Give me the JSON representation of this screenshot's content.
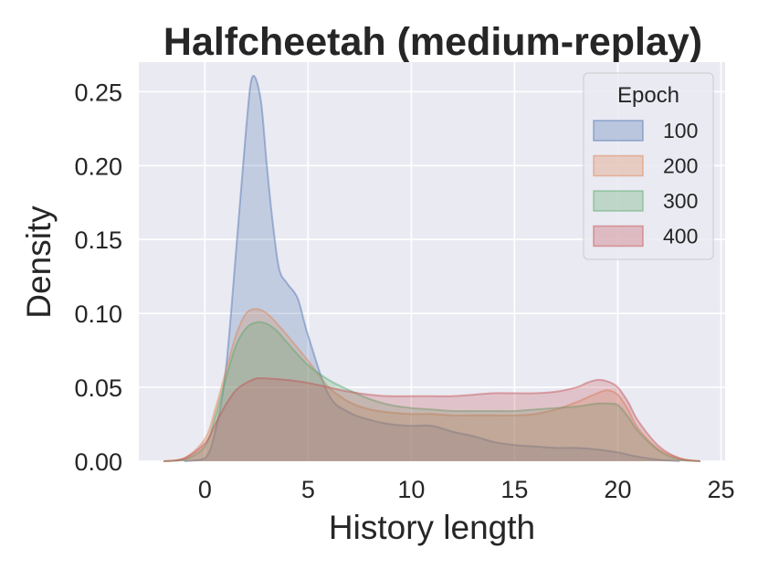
{
  "chart_data": {
    "type": "area",
    "title": "Halfcheetah (medium-replay)",
    "xlabel": "History length",
    "ylabel": "Density",
    "xlim": [
      -3.2,
      25.2
    ],
    "ylim": [
      0,
      0.27
    ],
    "xticks": [
      "0",
      "5",
      "10",
      "15",
      "20",
      "25"
    ],
    "xtick_values": [
      0,
      5,
      10,
      15,
      20,
      25
    ],
    "yticks": [
      "0.00",
      "0.05",
      "0.10",
      "0.15",
      "0.20",
      "0.25"
    ],
    "ytick_values": [
      0,
      0.05,
      0.1,
      0.15,
      0.2,
      0.25
    ],
    "grid": true,
    "legend": {
      "title": "Epoch",
      "placement": "top-right"
    },
    "series": [
      {
        "name": "100",
        "color": "#4c72b0",
        "x": [
          -1,
          0,
          0.5,
          1,
          1.5,
          2,
          2.3,
          2.7,
          3,
          3.3,
          3.6,
          4,
          4.5,
          5,
          6,
          7,
          8,
          9,
          10,
          11,
          12,
          13,
          14,
          15,
          16,
          17,
          18,
          19,
          20,
          21,
          22,
          23
        ],
        "y": [
          0,
          0.002,
          0.02,
          0.06,
          0.14,
          0.225,
          0.26,
          0.245,
          0.2,
          0.16,
          0.13,
          0.12,
          0.11,
          0.085,
          0.045,
          0.033,
          0.028,
          0.025,
          0.024,
          0.024,
          0.02,
          0.017,
          0.013,
          0.011,
          0.01,
          0.009,
          0.009,
          0.008,
          0.006,
          0.003,
          0.001,
          0
        ]
      },
      {
        "name": "200",
        "color": "#dd8452",
        "x": [
          -2,
          -1,
          0,
          0.5,
          1,
          1.5,
          2,
          2.5,
          3,
          3.5,
          4,
          5,
          6,
          7,
          8,
          9,
          10,
          11,
          12,
          13,
          14,
          15,
          16,
          17,
          18,
          19,
          19.5,
          20,
          20.5,
          21,
          22,
          23,
          24
        ],
        "y": [
          0,
          0.002,
          0.015,
          0.035,
          0.06,
          0.085,
          0.1,
          0.103,
          0.1,
          0.093,
          0.085,
          0.068,
          0.05,
          0.04,
          0.035,
          0.033,
          0.032,
          0.032,
          0.031,
          0.031,
          0.031,
          0.031,
          0.032,
          0.035,
          0.04,
          0.046,
          0.048,
          0.045,
          0.035,
          0.022,
          0.008,
          0.002,
          0
        ]
      },
      {
        "name": "300",
        "color": "#55a868",
        "x": [
          -2,
          -1,
          0,
          0.5,
          1,
          1.5,
          2,
          2.5,
          3,
          3.5,
          4,
          5,
          6,
          7,
          8,
          9,
          10,
          11,
          12,
          13,
          14,
          15,
          16,
          17,
          18,
          19,
          19.5,
          20,
          20.5,
          21,
          22,
          23,
          24
        ],
        "y": [
          0,
          0.001,
          0.01,
          0.03,
          0.055,
          0.078,
          0.09,
          0.094,
          0.093,
          0.088,
          0.08,
          0.065,
          0.055,
          0.048,
          0.042,
          0.038,
          0.036,
          0.035,
          0.034,
          0.034,
          0.034,
          0.034,
          0.035,
          0.036,
          0.037,
          0.039,
          0.039,
          0.038,
          0.03,
          0.02,
          0.007,
          0.001,
          0
        ]
      },
      {
        "name": "400",
        "color": "#c44e52",
        "x": [
          -2,
          -1,
          0,
          0.5,
          1,
          1.5,
          2,
          2.5,
          3,
          4,
          5,
          6,
          7,
          8,
          9,
          10,
          11,
          12,
          13,
          14,
          15,
          16,
          17,
          18,
          18.5,
          19,
          19.5,
          20,
          20.5,
          21,
          22,
          23,
          24
        ],
        "y": [
          0,
          0.002,
          0.012,
          0.025,
          0.038,
          0.048,
          0.053,
          0.056,
          0.056,
          0.055,
          0.053,
          0.05,
          0.047,
          0.045,
          0.044,
          0.044,
          0.044,
          0.044,
          0.045,
          0.046,
          0.046,
          0.046,
          0.047,
          0.05,
          0.053,
          0.055,
          0.054,
          0.05,
          0.04,
          0.027,
          0.01,
          0.002,
          0
        ]
      }
    ]
  }
}
